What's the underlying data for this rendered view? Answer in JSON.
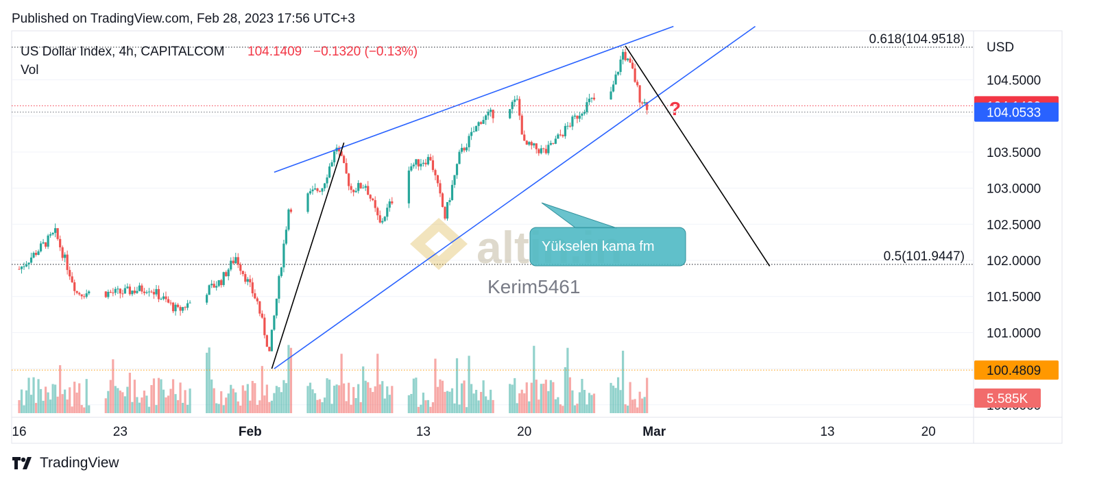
{
  "header": {
    "published": "Published on TradingView.com, Feb 28, 2023 17:56 UTC+3"
  },
  "footer": {
    "brand": "TradingView"
  },
  "colors": {
    "up": "#26a69a",
    "down": "#ef5350",
    "trend_line": "#2962ff",
    "projection_line": "#000000",
    "current_price": "#f23645",
    "support_price": "#2962ff",
    "orange_level": "#ff9800",
    "callout_bg": "#4fb9c4"
  },
  "chart_data": {
    "type": "candlestick",
    "symbol": "US Dollar Index, 4h, CAPITALCOM",
    "last_price": "104.1409",
    "change": "−0.1320 (−0.13%)",
    "volume_label": "Vol",
    "currency": "USD",
    "ylim": [
      100.0,
      105.55
    ],
    "y_ticks": [
      "104.5000",
      "104.0000",
      "103.5000",
      "103.0000",
      "102.5000",
      "102.0000",
      "101.5000",
      "101.0000",
      "100.5000",
      "100.0000"
    ],
    "x_ticks": [
      "16",
      "23",
      "Feb",
      "13",
      "20",
      "Mar",
      "13",
      "20"
    ],
    "price_badges": [
      {
        "label": "104.1409",
        "value": 104.1409,
        "kind": "current"
      },
      {
        "label": "104.0533",
        "value": 104.0533,
        "kind": "support"
      },
      {
        "label": "100.4809",
        "value": 100.4809,
        "kind": "orange"
      },
      {
        "label": "5.585K",
        "kind": "volume"
      }
    ],
    "fib_levels": [
      {
        "label": "0.618(104.9518)",
        "value": 104.9518
      },
      {
        "label": "0.5(101.9447)",
        "value": 101.9447
      }
    ],
    "anchors": [
      {
        "date": "2023-01-16 00:00",
        "close": 101.88
      },
      {
        "date": "2023-01-18 12:00",
        "close": 102.38
      },
      {
        "date": "2023-01-20 00:00",
        "close": 101.55
      },
      {
        "date": "2023-01-23 00:00",
        "close": 101.55
      },
      {
        "date": "2023-01-25 00:00",
        "close": 101.62
      },
      {
        "date": "2023-01-27 00:00",
        "close": 101.3
      },
      {
        "date": "2023-01-30 00:00",
        "close": 101.72
      },
      {
        "date": "2023-01-31 00:00",
        "close": 102.05
      },
      {
        "date": "2023-02-01 12:00",
        "close": 101.42
      },
      {
        "date": "2023-02-02 08:00",
        "close": 100.72
      },
      {
        "date": "2023-02-03 16:00",
        "close": 102.72
      },
      {
        "date": "2023-02-06 00:00",
        "close": 103.02
      },
      {
        "date": "2023-02-07 00:00",
        "close": 103.58
      },
      {
        "date": "2023-02-08 00:00",
        "close": 102.98
      },
      {
        "date": "2023-02-09 00:00",
        "close": 103.05
      },
      {
        "date": "2023-02-10 00:00",
        "close": 102.5
      },
      {
        "date": "2023-02-12 00:00",
        "close": 103.3
      },
      {
        "date": "2023-02-13 12:00",
        "close": 103.42
      },
      {
        "date": "2023-02-14 12:00",
        "close": 102.6
      },
      {
        "date": "2023-02-15 12:00",
        "close": 103.45
      },
      {
        "date": "2023-02-17 00:00",
        "close": 103.95
      },
      {
        "date": "2023-02-19 12:00",
        "close": 104.2
      },
      {
        "date": "2023-02-20 00:00",
        "close": 103.6
      },
      {
        "date": "2023-02-21 12:00",
        "close": 103.5
      },
      {
        "date": "2023-02-23 00:00",
        "close": 103.85
      },
      {
        "date": "2023-02-24 12:00",
        "close": 104.2
      },
      {
        "date": "2023-02-26 00:00",
        "close": 104.3
      },
      {
        "date": "2023-02-26 20:00",
        "close": 104.88
      },
      {
        "date": "2023-02-27 12:00",
        "close": 104.62
      },
      {
        "date": "2023-02-28 00:00",
        "close": 104.25
      },
      {
        "date": "2023-02-28 12:00",
        "close": 104.14
      }
    ],
    "trendlines": [
      {
        "name": "wedge-upper",
        "points": [
          {
            "date": "2023-02-02 16:00",
            "value": 103.22
          },
          {
            "date": "2023-03-02 08:00",
            "value": 105.24
          }
        ]
      },
      {
        "name": "wedge-lower",
        "points": [
          {
            "date": "2023-02-02 16:00",
            "value": 100.5
          },
          {
            "date": "2023-03-08 00:00",
            "value": 105.24
          }
        ]
      },
      {
        "name": "leg-up",
        "points": [
          {
            "date": "2023-02-02 12:00",
            "value": 100.5
          },
          {
            "date": "2023-02-07 12:00",
            "value": 103.63
          }
        ]
      },
      {
        "name": "projection",
        "points": [
          {
            "date": "2023-02-27 00:00",
            "value": 104.97
          },
          {
            "date": "2023-03-09 00:00",
            "value": 101.92
          }
        ]
      }
    ],
    "annotations": {
      "callout": "Yükselen kama fm",
      "watermark_author": "Kerim5461",
      "watermark_logo": "altin.in",
      "question_mark": "?"
    }
  }
}
